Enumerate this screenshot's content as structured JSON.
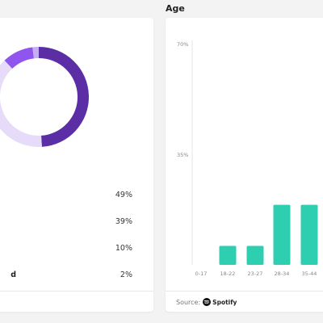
{
  "section_title": "Age",
  "donut": {
    "segments": [
      {
        "value": 49,
        "color": "#5b2ea6"
      },
      {
        "value": 39,
        "color": "#e6dcfa"
      },
      {
        "value": 10,
        "color": "#8f55ee"
      },
      {
        "value": 2,
        "color": "#c7aef2"
      }
    ]
  },
  "legend": {
    "rows": [
      {
        "label": "",
        "percent": "49%"
      },
      {
        "label": "",
        "percent": "39%"
      },
      {
        "label": "",
        "percent": "10%"
      },
      {
        "label": "d",
        "percent": "2%"
      }
    ]
  },
  "chart_data": {
    "type": "bar",
    "categories": [
      "0-17",
      "18-22",
      "23-27",
      "28-34",
      "35-44"
    ],
    "values": [
      0,
      6,
      6,
      19,
      19
    ],
    "yticks": [
      "70%",
      "35%"
    ],
    "ylim": [
      0,
      70
    ],
    "bar_color": "#2ecfb1",
    "grid": false
  },
  "footer": {
    "source_label": "Source:",
    "spotify_label": "Spotify"
  }
}
